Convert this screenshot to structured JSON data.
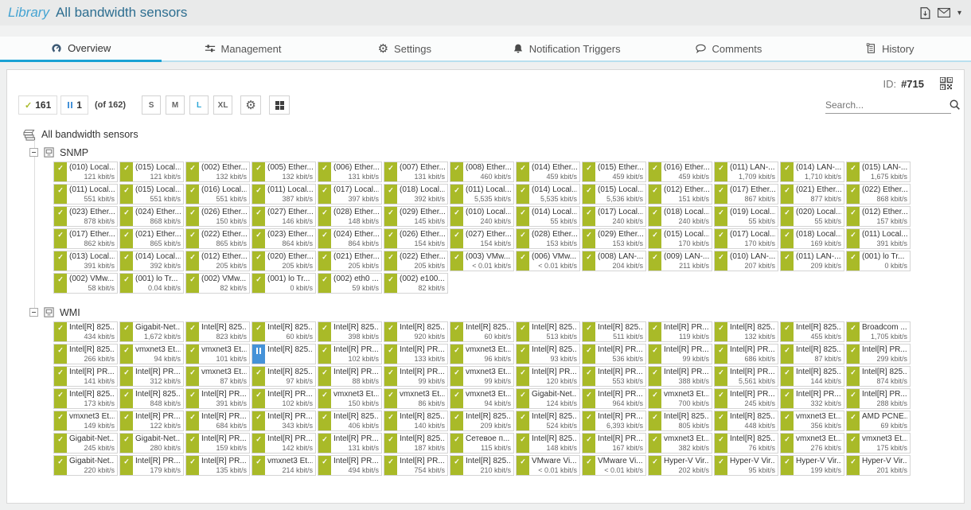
{
  "header": {
    "breadcrumb": "Library",
    "title": "All bandwidth sensors"
  },
  "tabs": [
    {
      "label": "Overview",
      "icon": "gauge",
      "active": true
    },
    {
      "label": "Management",
      "icon": "sliders",
      "active": false
    },
    {
      "label": "Settings",
      "icon": "gear",
      "active": false
    },
    {
      "label": "Notification Triggers",
      "icon": "bell",
      "active": false
    },
    {
      "label": "Comments",
      "icon": "comment",
      "active": false
    },
    {
      "label": "History",
      "icon": "history",
      "active": false
    }
  ],
  "meta": {
    "id_label": "ID:",
    "id_value": "#715"
  },
  "search": {
    "placeholder": "Search..."
  },
  "toolbar": {
    "up_count": "161",
    "paused_count": "1",
    "total_label": "(of 162)",
    "sizes": [
      "S",
      "M",
      "L",
      "XL"
    ],
    "active_size": "L"
  },
  "colors": {
    "up": "#a9ba28",
    "paused": "#4592d8",
    "accent": "#1ba2d4"
  },
  "tree": {
    "root_label": "All bandwidth sensors",
    "groups": [
      {
        "name": "SNMP",
        "rows": [
          [
            {
              "l": "(010) Local...",
              "v": "121 kbit/s"
            },
            {
              "l": "(015) Local...",
              "v": "121 kbit/s"
            },
            {
              "l": "(002) Ether...",
              "v": "132 kbit/s"
            },
            {
              "l": "(005) Ether...",
              "v": "132 kbit/s"
            },
            {
              "l": "(006) Ether...",
              "v": "131 kbit/s"
            },
            {
              "l": "(007) Ether...",
              "v": "131 kbit/s"
            },
            {
              "l": "(008) Ether...",
              "v": "460 kbit/s"
            },
            {
              "l": "(014) Ether...",
              "v": "459 kbit/s"
            },
            {
              "l": "(015) Ether...",
              "v": "459 kbit/s"
            },
            {
              "l": "(016) Ether...",
              "v": "459 kbit/s"
            },
            {
              "l": "(011) LAN-...",
              "v": "1,709 kbit/s"
            },
            {
              "l": "(014) LAN-...",
              "v": "1,710 kbit/s"
            },
            {
              "l": "(015) LAN-...",
              "v": "1,675 kbit/s"
            }
          ],
          [
            {
              "l": "(011) Local...",
              "v": "551 kbit/s"
            },
            {
              "l": "(015) Local...",
              "v": "551 kbit/s"
            },
            {
              "l": "(016) Local...",
              "v": "551 kbit/s"
            },
            {
              "l": "(011) Local...",
              "v": "387 kbit/s"
            },
            {
              "l": "(017) Local...",
              "v": "397 kbit/s"
            },
            {
              "l": "(018) Local...",
              "v": "392 kbit/s"
            },
            {
              "l": "(011) Local...",
              "v": "5,535 kbit/s"
            },
            {
              "l": "(014) Local...",
              "v": "5,535 kbit/s"
            },
            {
              "l": "(015) Local...",
              "v": "5,536 kbit/s"
            },
            {
              "l": "(012) Ether...",
              "v": "151 kbit/s"
            },
            {
              "l": "(017) Ether...",
              "v": "867 kbit/s"
            },
            {
              "l": "(021) Ether...",
              "v": "877 kbit/s"
            },
            {
              "l": "(022) Ether...",
              "v": "868 kbit/s"
            }
          ],
          [
            {
              "l": "(023) Ether...",
              "v": "878 kbit/s"
            },
            {
              "l": "(024) Ether...",
              "v": "868 kbit/s"
            },
            {
              "l": "(026) Ether...",
              "v": "150 kbit/s"
            },
            {
              "l": "(027) Ether...",
              "v": "146 kbit/s"
            },
            {
              "l": "(028) Ether...",
              "v": "148 kbit/s"
            },
            {
              "l": "(029) Ether...",
              "v": "145 kbit/s"
            },
            {
              "l": "(010) Local...",
              "v": "240 kbit/s"
            },
            {
              "l": "(014) Local...",
              "v": "55 kbit/s"
            },
            {
              "l": "(017) Local...",
              "v": "240 kbit/s"
            },
            {
              "l": "(018) Local...",
              "v": "240 kbit/s"
            },
            {
              "l": "(019) Local...",
              "v": "55 kbit/s"
            },
            {
              "l": "(020) Local...",
              "v": "55 kbit/s"
            },
            {
              "l": "(012) Ether...",
              "v": "157 kbit/s"
            }
          ],
          [
            {
              "l": "(017) Ether...",
              "v": "862 kbit/s"
            },
            {
              "l": "(021) Ether...",
              "v": "865 kbit/s"
            },
            {
              "l": "(022) Ether...",
              "v": "865 kbit/s"
            },
            {
              "l": "(023) Ether...",
              "v": "864 kbit/s"
            },
            {
              "l": "(024) Ether...",
              "v": "864 kbit/s"
            },
            {
              "l": "(026) Ether...",
              "v": "154 kbit/s"
            },
            {
              "l": "(027) Ether...",
              "v": "154 kbit/s"
            },
            {
              "l": "(028) Ether...",
              "v": "153 kbit/s"
            },
            {
              "l": "(029) Ether...",
              "v": "153 kbit/s"
            },
            {
              "l": "(015) Local...",
              "v": "170 kbit/s"
            },
            {
              "l": "(017) Local...",
              "v": "170 kbit/s"
            },
            {
              "l": "(018) Local...",
              "v": "169 kbit/s"
            },
            {
              "l": "(011) Local...",
              "v": "391 kbit/s"
            }
          ],
          [
            {
              "l": "(013) Local...",
              "v": "391 kbit/s"
            },
            {
              "l": "(014) Local...",
              "v": "392 kbit/s"
            },
            {
              "l": "(012) Ether...",
              "v": "205 kbit/s"
            },
            {
              "l": "(020) Ether...",
              "v": "205 kbit/s"
            },
            {
              "l": "(021) Ether...",
              "v": "205 kbit/s"
            },
            {
              "l": "(022) Ether...",
              "v": "205 kbit/s"
            },
            {
              "l": "(003) VMw...",
              "v": "< 0.01 kbit/s"
            },
            {
              "l": "(006) VMw...",
              "v": "< 0.01 kbit/s"
            },
            {
              "l": "(008) LAN-...",
              "v": "204 kbit/s"
            },
            {
              "l": "(009) LAN-...",
              "v": "211 kbit/s"
            },
            {
              "l": "(010) LAN-...",
              "v": "207 kbit/s"
            },
            {
              "l": "(011) LAN-...",
              "v": "209 kbit/s"
            },
            {
              "l": "(001) lo Tr...",
              "v": "0 kbit/s"
            }
          ],
          [
            {
              "l": "(002) VMw...",
              "v": "58 kbit/s"
            },
            {
              "l": "(001) lo Tr...",
              "v": "0.04 kbit/s"
            },
            {
              "l": "(002) VMw...",
              "v": "82 kbit/s"
            },
            {
              "l": "(001) lo Tr...",
              "v": "0 kbit/s"
            },
            {
              "l": "(002) eth0 ...",
              "v": "59 kbit/s"
            },
            {
              "l": "(002) e100...",
              "v": "82 kbit/s"
            }
          ]
        ]
      },
      {
        "name": "WMI",
        "rows": [
          [
            {
              "l": "Intel[R] 825...",
              "v": "434 kbit/s"
            },
            {
              "l": "Gigabit-Net...",
              "v": "1,672 kbit/s"
            },
            {
              "l": "Intel[R] 825...",
              "v": "823 kbit/s"
            },
            {
              "l": "Intel[R] 825...",
              "v": "60 kbit/s"
            },
            {
              "l": "Intel[R] 825...",
              "v": "398 kbit/s"
            },
            {
              "l": "Intel[R] 825...",
              "v": "920 kbit/s"
            },
            {
              "l": "Intel[R] 825...",
              "v": "60 kbit/s"
            },
            {
              "l": "Intel[R] 825...",
              "v": "513 kbit/s"
            },
            {
              "l": "Intel[R] 825...",
              "v": "511 kbit/s"
            },
            {
              "l": "Intel[R] PR...",
              "v": "119 kbit/s"
            },
            {
              "l": "Intel[R] 825...",
              "v": "132 kbit/s"
            },
            {
              "l": "Intel[R] 825...",
              "v": "455 kbit/s"
            },
            {
              "l": "Broadcom ...",
              "v": "1,705 kbit/s"
            }
          ],
          [
            {
              "l": "Intel[R] 825...",
              "v": "266 kbit/s"
            },
            {
              "l": "vmxnet3 Et...",
              "v": "94 kbit/s"
            },
            {
              "l": "vmxnet3 Et...",
              "v": "101 kbit/s"
            },
            {
              "l": "Intel[R] 825...",
              "v": "",
              "s": "paused"
            },
            {
              "l": "Intel[R] PR...",
              "v": "102 kbit/s"
            },
            {
              "l": "Intel[R] PR...",
              "v": "133 kbit/s"
            },
            {
              "l": "vmxnet3 Et...",
              "v": "96 kbit/s"
            },
            {
              "l": "Intel[R] 825...",
              "v": "93 kbit/s"
            },
            {
              "l": "Intel[R] PR...",
              "v": "536 kbit/s"
            },
            {
              "l": "Intel[R] PR...",
              "v": "99 kbit/s"
            },
            {
              "l": "Intel[R] PR...",
              "v": "686 kbit/s"
            },
            {
              "l": "Intel[R] 825...",
              "v": "87 kbit/s"
            },
            {
              "l": "Intel[R] PR...",
              "v": "299 kbit/s"
            }
          ],
          [
            {
              "l": "Intel[R] PR...",
              "v": "141 kbit/s"
            },
            {
              "l": "Intel[R] PR...",
              "v": "312 kbit/s"
            },
            {
              "l": "vmxnet3 Et...",
              "v": "87 kbit/s"
            },
            {
              "l": "Intel[R] 825...",
              "v": "97 kbit/s"
            },
            {
              "l": "Intel[R] PR...",
              "v": "88 kbit/s"
            },
            {
              "l": "Intel[R] PR...",
              "v": "99 kbit/s"
            },
            {
              "l": "vmxnet3 Et...",
              "v": "99 kbit/s"
            },
            {
              "l": "Intel[R] PR...",
              "v": "120 kbit/s"
            },
            {
              "l": "Intel[R] PR...",
              "v": "553 kbit/s"
            },
            {
              "l": "Intel[R] PR...",
              "v": "388 kbit/s"
            },
            {
              "l": "Intel[R] PR...",
              "v": "5,561 kbit/s"
            },
            {
              "l": "Intel[R] 825...",
              "v": "144 kbit/s"
            },
            {
              "l": "Intel[R] 825...",
              "v": "874 kbit/s"
            }
          ],
          [
            {
              "l": "Intel[R] 825...",
              "v": "173 kbit/s"
            },
            {
              "l": "Intel[R] 825...",
              "v": "848 kbit/s"
            },
            {
              "l": "Intel[R] PR...",
              "v": "391 kbit/s"
            },
            {
              "l": "Intel[R] PR...",
              "v": "102 kbit/s"
            },
            {
              "l": "vmxnet3 Et...",
              "v": "150 kbit/s"
            },
            {
              "l": "vmxnet3 Et...",
              "v": "86 kbit/s"
            },
            {
              "l": "vmxnet3 Et...",
              "v": "94 kbit/s"
            },
            {
              "l": "Gigabit-Net...",
              "v": "124 kbit/s"
            },
            {
              "l": "Intel[R] PR...",
              "v": "964 kbit/s"
            },
            {
              "l": "vmxnet3 Et...",
              "v": "700 kbit/s"
            },
            {
              "l": "Intel[R] PR...",
              "v": "245 kbit/s"
            },
            {
              "l": "Intel[R] PR...",
              "v": "332 kbit/s"
            },
            {
              "l": "Intel[R] PR...",
              "v": "288 kbit/s"
            }
          ],
          [
            {
              "l": "vmxnet3 Et...",
              "v": "149 kbit/s"
            },
            {
              "l": "Intel[R] PR...",
              "v": "122 kbit/s"
            },
            {
              "l": "Intel[R] PR...",
              "v": "684 kbit/s"
            },
            {
              "l": "Intel[R] PR...",
              "v": "343 kbit/s"
            },
            {
              "l": "Intel[R] 825...",
              "v": "406 kbit/s"
            },
            {
              "l": "Intel[R] 825...",
              "v": "140 kbit/s"
            },
            {
              "l": "Intel[R] 825...",
              "v": "209 kbit/s"
            },
            {
              "l": "Intel[R] 825...",
              "v": "524 kbit/s"
            },
            {
              "l": "Intel[R] PR...",
              "v": "6,393 kbit/s"
            },
            {
              "l": "Intel[R] 825...",
              "v": "805 kbit/s"
            },
            {
              "l": "Intel[R] 825...",
              "v": "448 kbit/s"
            },
            {
              "l": "vmxnet3 Et...",
              "v": "356 kbit/s"
            },
            {
              "l": "AMD PCNE...",
              "v": "69 kbit/s"
            }
          ],
          [
            {
              "l": "Gigabit-Net...",
              "v": "245 kbit/s"
            },
            {
              "l": "Gigabit-Net...",
              "v": "280 kbit/s"
            },
            {
              "l": "Intel[R] PR...",
              "v": "159 kbit/s"
            },
            {
              "l": "Intel[R] PR...",
              "v": "142 kbit/s"
            },
            {
              "l": "Intel[R] PR...",
              "v": "131 kbit/s"
            },
            {
              "l": "Intel[R] 825...",
              "v": "187 kbit/s"
            },
            {
              "l": "Сетевое п...",
              "v": "115 kbit/s"
            },
            {
              "l": "Intel[R] 825...",
              "v": "148 kbit/s"
            },
            {
              "l": "Intel[R] PR...",
              "v": "167 kbit/s"
            },
            {
              "l": "vmxnet3 Et...",
              "v": "382 kbit/s"
            },
            {
              "l": "Intel[R] 825...",
              "v": "76 kbit/s"
            },
            {
              "l": "vmxnet3 Et...",
              "v": "276 kbit/s"
            },
            {
              "l": "vmxnet3 Et...",
              "v": "175 kbit/s"
            }
          ],
          [
            {
              "l": "Gigabit-Net...",
              "v": "220 kbit/s"
            },
            {
              "l": "Intel[R] PR...",
              "v": "179 kbit/s"
            },
            {
              "l": "Intel[R] PR...",
              "v": "135 kbit/s"
            },
            {
              "l": "vmxnet3 Et...",
              "v": "214 kbit/s"
            },
            {
              "l": "Intel[R] PR...",
              "v": "494 kbit/s"
            },
            {
              "l": "Intel[R] PR...",
              "v": "754 kbit/s"
            },
            {
              "l": "Intel[R] 825...",
              "v": "210 kbit/s"
            },
            {
              "l": "VMware Vi...",
              "v": "< 0.01 kbit/s"
            },
            {
              "l": "VMware Vi...",
              "v": "< 0.01 kbit/s"
            },
            {
              "l": "Hyper-V Vir...",
              "v": "202 kbit/s"
            },
            {
              "l": "Hyper-V Vir...",
              "v": "95 kbit/s"
            },
            {
              "l": "Hyper-V Vir...",
              "v": "199 kbit/s"
            },
            {
              "l": "Hyper-V Vir...",
              "v": "201 kbit/s"
            }
          ]
        ]
      }
    ]
  }
}
